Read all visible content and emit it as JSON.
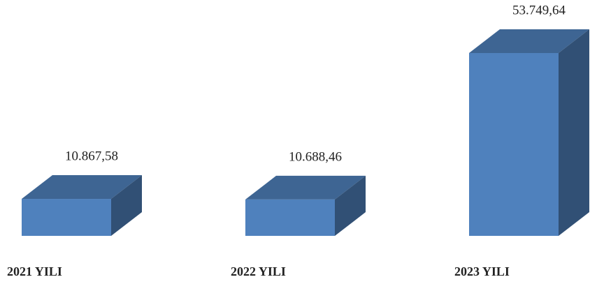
{
  "chart_data": {
    "type": "bar3d",
    "categories": [
      "2021 YILI",
      "2022 YILI",
      "2023 YILI"
    ],
    "values": [
      10867.58,
      10688.46,
      53749.64
    ],
    "value_labels": [
      "10.867,58",
      "10.688,46",
      "53.749,64"
    ],
    "color": "#4f81bd"
  }
}
